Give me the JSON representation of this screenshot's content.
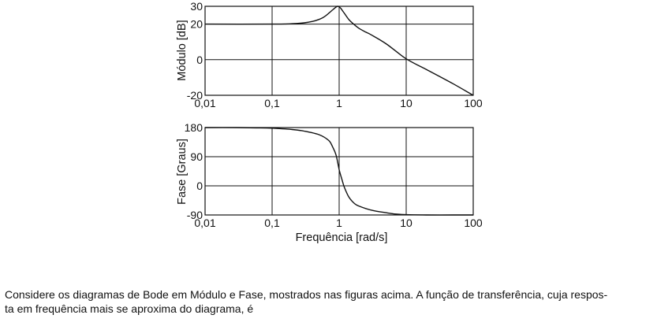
{
  "chart_data": [
    {
      "type": "line",
      "title": "",
      "xlabel": "",
      "ylabel": "Módulo [dB]",
      "xscale": "log",
      "xlim": [
        0.01,
        100
      ],
      "ylim": [
        -20,
        30
      ],
      "x_ticks": [
        "0,01",
        "0,1",
        "1",
        "10",
        "100"
      ],
      "y_ticks": [
        "30",
        "20",
        "0",
        "-20"
      ],
      "grid": true,
      "series": [
        {
          "x": [
            0.01,
            0.1,
            0.2,
            0.3,
            0.4,
            0.5,
            0.6,
            0.7,
            0.8,
            0.9,
            0.95,
            1.0,
            1.05,
            1.1,
            1.2,
            1.4,
            1.7,
            2.0,
            2.5,
            3.0,
            5.0,
            10,
            20,
            50,
            100
          ],
          "y": [
            20,
            20,
            20.2,
            20.7,
            21.5,
            22.6,
            24.1,
            26.1,
            28.0,
            29.6,
            30.0,
            29.7,
            29.0,
            28.0,
            26.0,
            22.5,
            19.5,
            17.5,
            15.5,
            14.0,
            9.0,
            0.5,
            -5.5,
            -13.5,
            -20
          ]
        }
      ]
    },
    {
      "type": "line",
      "title": "",
      "xlabel": "Frequência [rad/s]",
      "ylabel": "Fase [Graus]",
      "xscale": "log",
      "xlim": [
        0.01,
        100
      ],
      "ylim": [
        -90,
        180
      ],
      "x_ticks": [
        "0,01",
        "0,1",
        "1",
        "10",
        "100"
      ],
      "y_ticks": [
        "180",
        "90",
        "0",
        "-90"
      ],
      "grid": true,
      "series": [
        {
          "x": [
            0.01,
            0.03,
            0.06,
            0.1,
            0.2,
            0.3,
            0.5,
            0.7,
            0.8,
            0.9,
            1.0,
            1.1,
            1.2,
            1.4,
            1.7,
            2.0,
            3.0,
            5.0,
            7.0,
            10,
            20,
            50,
            100
          ],
          "y": [
            180,
            180,
            179,
            178,
            174,
            169,
            158,
            140,
            120,
            95,
            50,
            20,
            -5,
            -35,
            -55,
            -63,
            -75,
            -83,
            -87,
            -89,
            -90,
            -90,
            -90
          ]
        }
      ]
    }
  ],
  "question": {
    "line1": "Considere os diagramas de Bode em Módulo e Fase, mostrados nas figuras acima. A função de transferência, cuja respos-",
    "line2": "ta em frequência mais se aproxima do diagrama, é"
  }
}
